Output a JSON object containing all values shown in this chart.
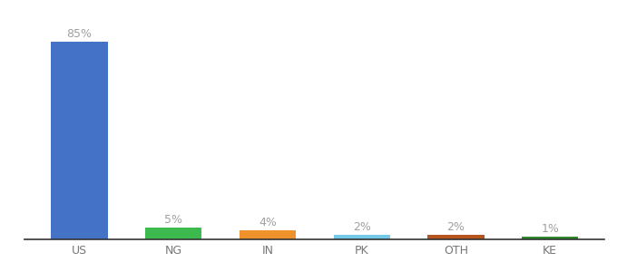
{
  "categories": [
    "US",
    "NG",
    "IN",
    "PK",
    "OTH",
    "KE"
  ],
  "values": [
    85,
    5,
    4,
    2,
    2,
    1
  ],
  "bar_colors": [
    "#4472c4",
    "#3dba4e",
    "#f0922b",
    "#74c8e8",
    "#b5541c",
    "#2d8a2d"
  ],
  "label_color": "#a0a0a0",
  "value_fontsize": 9,
  "xlabel_fontsize": 9,
  "ylim": [
    0,
    97
  ],
  "bar_width": 0.6,
  "background_color": "#ffffff"
}
